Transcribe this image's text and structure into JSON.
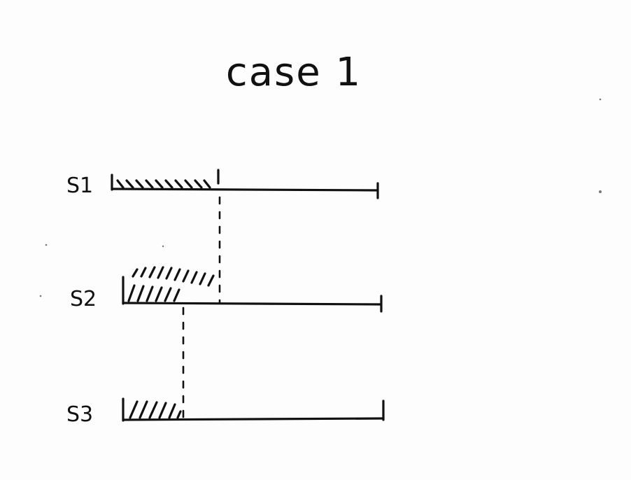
{
  "title": "case 1",
  "rows": [
    {
      "label": "S1"
    },
    {
      "label": "S2"
    },
    {
      "label": "S3"
    }
  ],
  "ink_color": "#111111"
}
